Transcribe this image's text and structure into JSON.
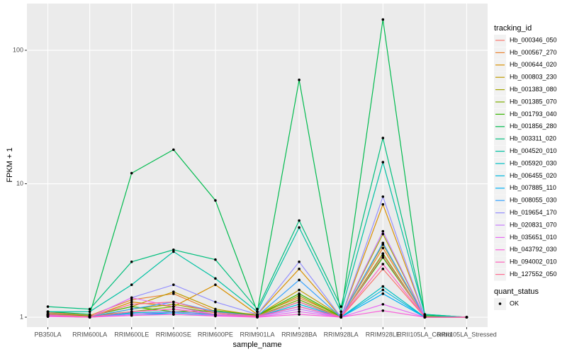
{
  "chart_data": {
    "type": "line",
    "log_scale": true,
    "grid": true,
    "x_label": "sample_name",
    "y_label": "FPKM + 1",
    "legend_title": "tracking_id",
    "legend_position": "right",
    "point_legend_title": "quant_status",
    "point_legend_entries": [
      "OK"
    ],
    "point_color": "#000000",
    "categories": [
      "PB350LA",
      "RRIM600LA",
      "RRIM600LE",
      "RRIM600SE",
      "RRIM600PE",
      "RRIM901LA",
      "RRIM928BA",
      "RRIM928LA",
      "RRIM928LE",
      "RRII105LA_Control",
      "RRII105LA_Stressed"
    ],
    "ylim": [
      0.843,
      224
    ],
    "yticks": [
      1,
      10,
      100
    ],
    "series": [
      {
        "name": "Hb_000346_050",
        "color": "#F8766D",
        "values": [
          1.08,
          1.02,
          1.1,
          1.15,
          1.05,
          1.02,
          1.2,
          1.0,
          2.3,
          1.0,
          1.0
        ]
      },
      {
        "name": "Hb_000567_270",
        "color": "#EA8331",
        "values": [
          1.1,
          1.03,
          1.35,
          1.5,
          1.1,
          1.05,
          1.4,
          1.02,
          3.3,
          1.02,
          1.0
        ]
      },
      {
        "name": "Hb_000644_020",
        "color": "#D89000",
        "values": [
          1.05,
          1.0,
          1.3,
          1.2,
          1.75,
          1.05,
          2.3,
          1.0,
          7,
          1.0,
          1.0
        ]
      },
      {
        "name": "Hb_000803_230",
        "color": "#C09B00",
        "values": [
          1.05,
          1.02,
          1.2,
          1.55,
          1.15,
          1.03,
          1.6,
          1.02,
          3.5,
          1.02,
          1.0
        ]
      },
      {
        "name": "Hb_001383_080",
        "color": "#A3A500",
        "values": [
          1.03,
          1.0,
          1.15,
          1.25,
          1.1,
          1.02,
          1.45,
          1.0,
          4.2,
          1.0,
          1.0
        ]
      },
      {
        "name": "Hb_001385_070",
        "color": "#7CAE00",
        "values": [
          1.04,
          1.01,
          1.1,
          1.2,
          1.08,
          1.02,
          1.35,
          1.0,
          3.0,
          1.0,
          1.0
        ]
      },
      {
        "name": "Hb_001793_040",
        "color": "#39B600",
        "values": [
          1.06,
          1.02,
          1.2,
          1.1,
          1.12,
          1.03,
          1.5,
          1.01,
          2.8,
          1.01,
          1.0
        ]
      },
      {
        "name": "Hb_001856_280",
        "color": "#00BB4E",
        "values": [
          1.1,
          1.05,
          12,
          18,
          7.5,
          1.1,
          60,
          1.05,
          170,
          1.03,
          1.0
        ]
      },
      {
        "name": "Hb_003311_020",
        "color": "#00BF7D",
        "values": [
          1.2,
          1.15,
          2.6,
          3.2,
          2.7,
          1.15,
          5.3,
          1.2,
          22,
          1.05,
          1.0
        ]
      },
      {
        "name": "Hb_004520_010",
        "color": "#00C1A3",
        "values": [
          1.1,
          1.1,
          1.75,
          3.1,
          1.95,
          1.1,
          4.7,
          1.1,
          14.5,
          1.05,
          1.0
        ]
      },
      {
        "name": "Hb_005920_030",
        "color": "#00BFC4",
        "values": [
          1.02,
          1.0,
          1.08,
          1.1,
          1.05,
          1.02,
          1.3,
          1.0,
          1.7,
          1.0,
          1.0
        ]
      },
      {
        "name": "Hb_006455_020",
        "color": "#00BAE0",
        "values": [
          1.03,
          1.0,
          1.05,
          1.08,
          1.04,
          1.01,
          1.25,
          1.0,
          1.6,
          1.0,
          1.0
        ]
      },
      {
        "name": "Hb_007885_110",
        "color": "#00B0F6",
        "values": [
          1.02,
          1.0,
          1.06,
          1.05,
          1.03,
          1.01,
          1.2,
          1.0,
          1.5,
          1.0,
          1.0
        ]
      },
      {
        "name": "Hb_008055_030",
        "color": "#35A2FF",
        "values": [
          1.04,
          1.01,
          1.15,
          1.3,
          1.1,
          1.02,
          1.9,
          1.0,
          3.6,
          1.0,
          1.0
        ]
      },
      {
        "name": "Hb_019654_170",
        "color": "#9590FF",
        "values": [
          1.05,
          1.0,
          1.4,
          1.75,
          1.3,
          1.05,
          2.6,
          1.0,
          8,
          1.0,
          1.0
        ]
      },
      {
        "name": "Hb_020831_070",
        "color": "#C77CFF",
        "values": [
          1.02,
          1.0,
          1.05,
          1.1,
          1.03,
          1.01,
          1.15,
          1.0,
          4.4,
          1.0,
          1.0
        ]
      },
      {
        "name": "Hb_035651_010",
        "color": "#E76BF3",
        "values": [
          1.01,
          1.0,
          1.4,
          1.2,
          1.05,
          1.0,
          1.1,
          1.0,
          1.25,
          1.0,
          1.0
        ]
      },
      {
        "name": "Hb_043792_030",
        "color": "#FA62DB",
        "values": [
          1.02,
          1.0,
          1.03,
          1.05,
          1.02,
          1.0,
          1.05,
          1.0,
          1.12,
          1.0,
          1.0
        ]
      },
      {
        "name": "Hb_094002_010",
        "color": "#FF62BC",
        "values": [
          1.03,
          1.0,
          1.1,
          1.15,
          1.05,
          1.01,
          1.2,
          1.0,
          2.5,
          1.0,
          1.0
        ]
      },
      {
        "name": "Hb_127552_050",
        "color": "#FF6C91",
        "values": [
          1.05,
          1.01,
          1.25,
          1.3,
          1.08,
          1.02,
          1.3,
          1.0,
          2.9,
          1.0,
          1.0
        ]
      }
    ]
  }
}
